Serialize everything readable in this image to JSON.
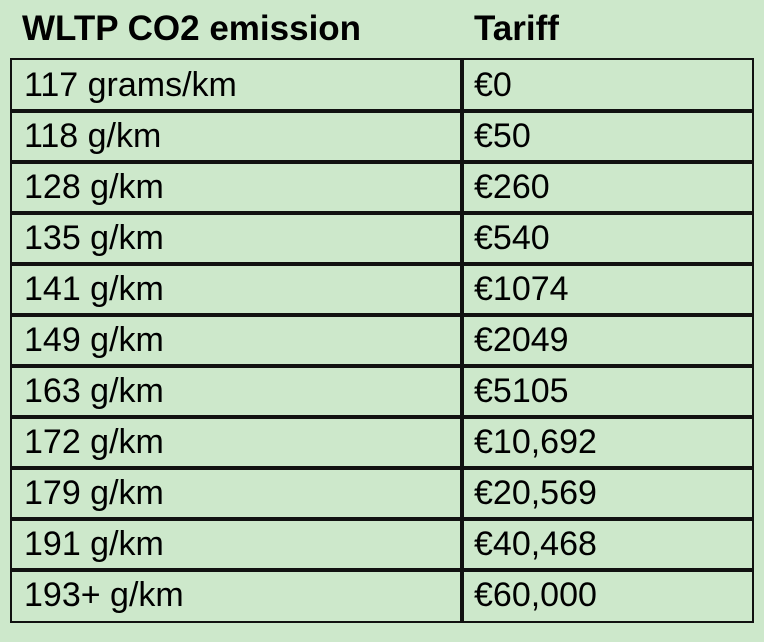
{
  "table": {
    "header": [
      "WLTP CO2 emission",
      "Tariff"
    ],
    "rows": [
      [
        "117 grams/km",
        "€0"
      ],
      [
        "118 g/km",
        "€50"
      ],
      [
        "128 g/km",
        "€260"
      ],
      [
        "135 g/km",
        "€540"
      ],
      [
        "141 g/km",
        "€1074"
      ],
      [
        "149 g/km",
        "€2049"
      ],
      [
        "163 g/km",
        "€5105"
      ],
      [
        "172 g/km",
        "€10,692"
      ],
      [
        "179 g/km",
        "€20,569"
      ],
      [
        "191 g/km",
        "€40,468"
      ],
      [
        "193+ g/km",
        "€60,000"
      ]
    ]
  }
}
